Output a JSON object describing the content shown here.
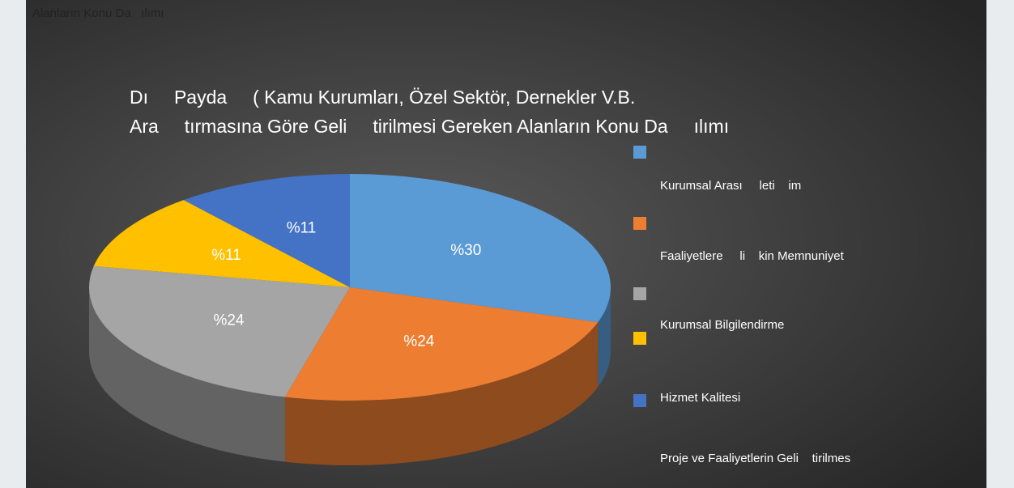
{
  "header_fragment": "Alanların Konu Da   ılımı",
  "chart_data": {
    "type": "pie",
    "title": [
      "Dı     Payda     ( Kamu Kurumları, Özel Sektör, Dernekler V.B.",
      "Ara     tırmasına Göre Geli     tirilmesi Gereken Alanların Konu Da     ılımı"
    ],
    "values": [
      30,
      24,
      24,
      11,
      11
    ],
    "value_labels": [
      "%30",
      "%24",
      "%24",
      "%11",
      "%11"
    ],
    "colors": [
      "#5b9bd5",
      "#ed7d31",
      "#a5a5a5",
      "#ffc000",
      "#4472c4"
    ],
    "legend_labels": [
      "Kurumsal Arası     leti    im",
      "Faaliyetlere     li    kin Memnuniyet",
      "Kurumsal Bilgilendirme",
      "Hizmet Kalitesi",
      "Proje ve Faaliyetlerin Geli    tirilmes"
    ]
  }
}
